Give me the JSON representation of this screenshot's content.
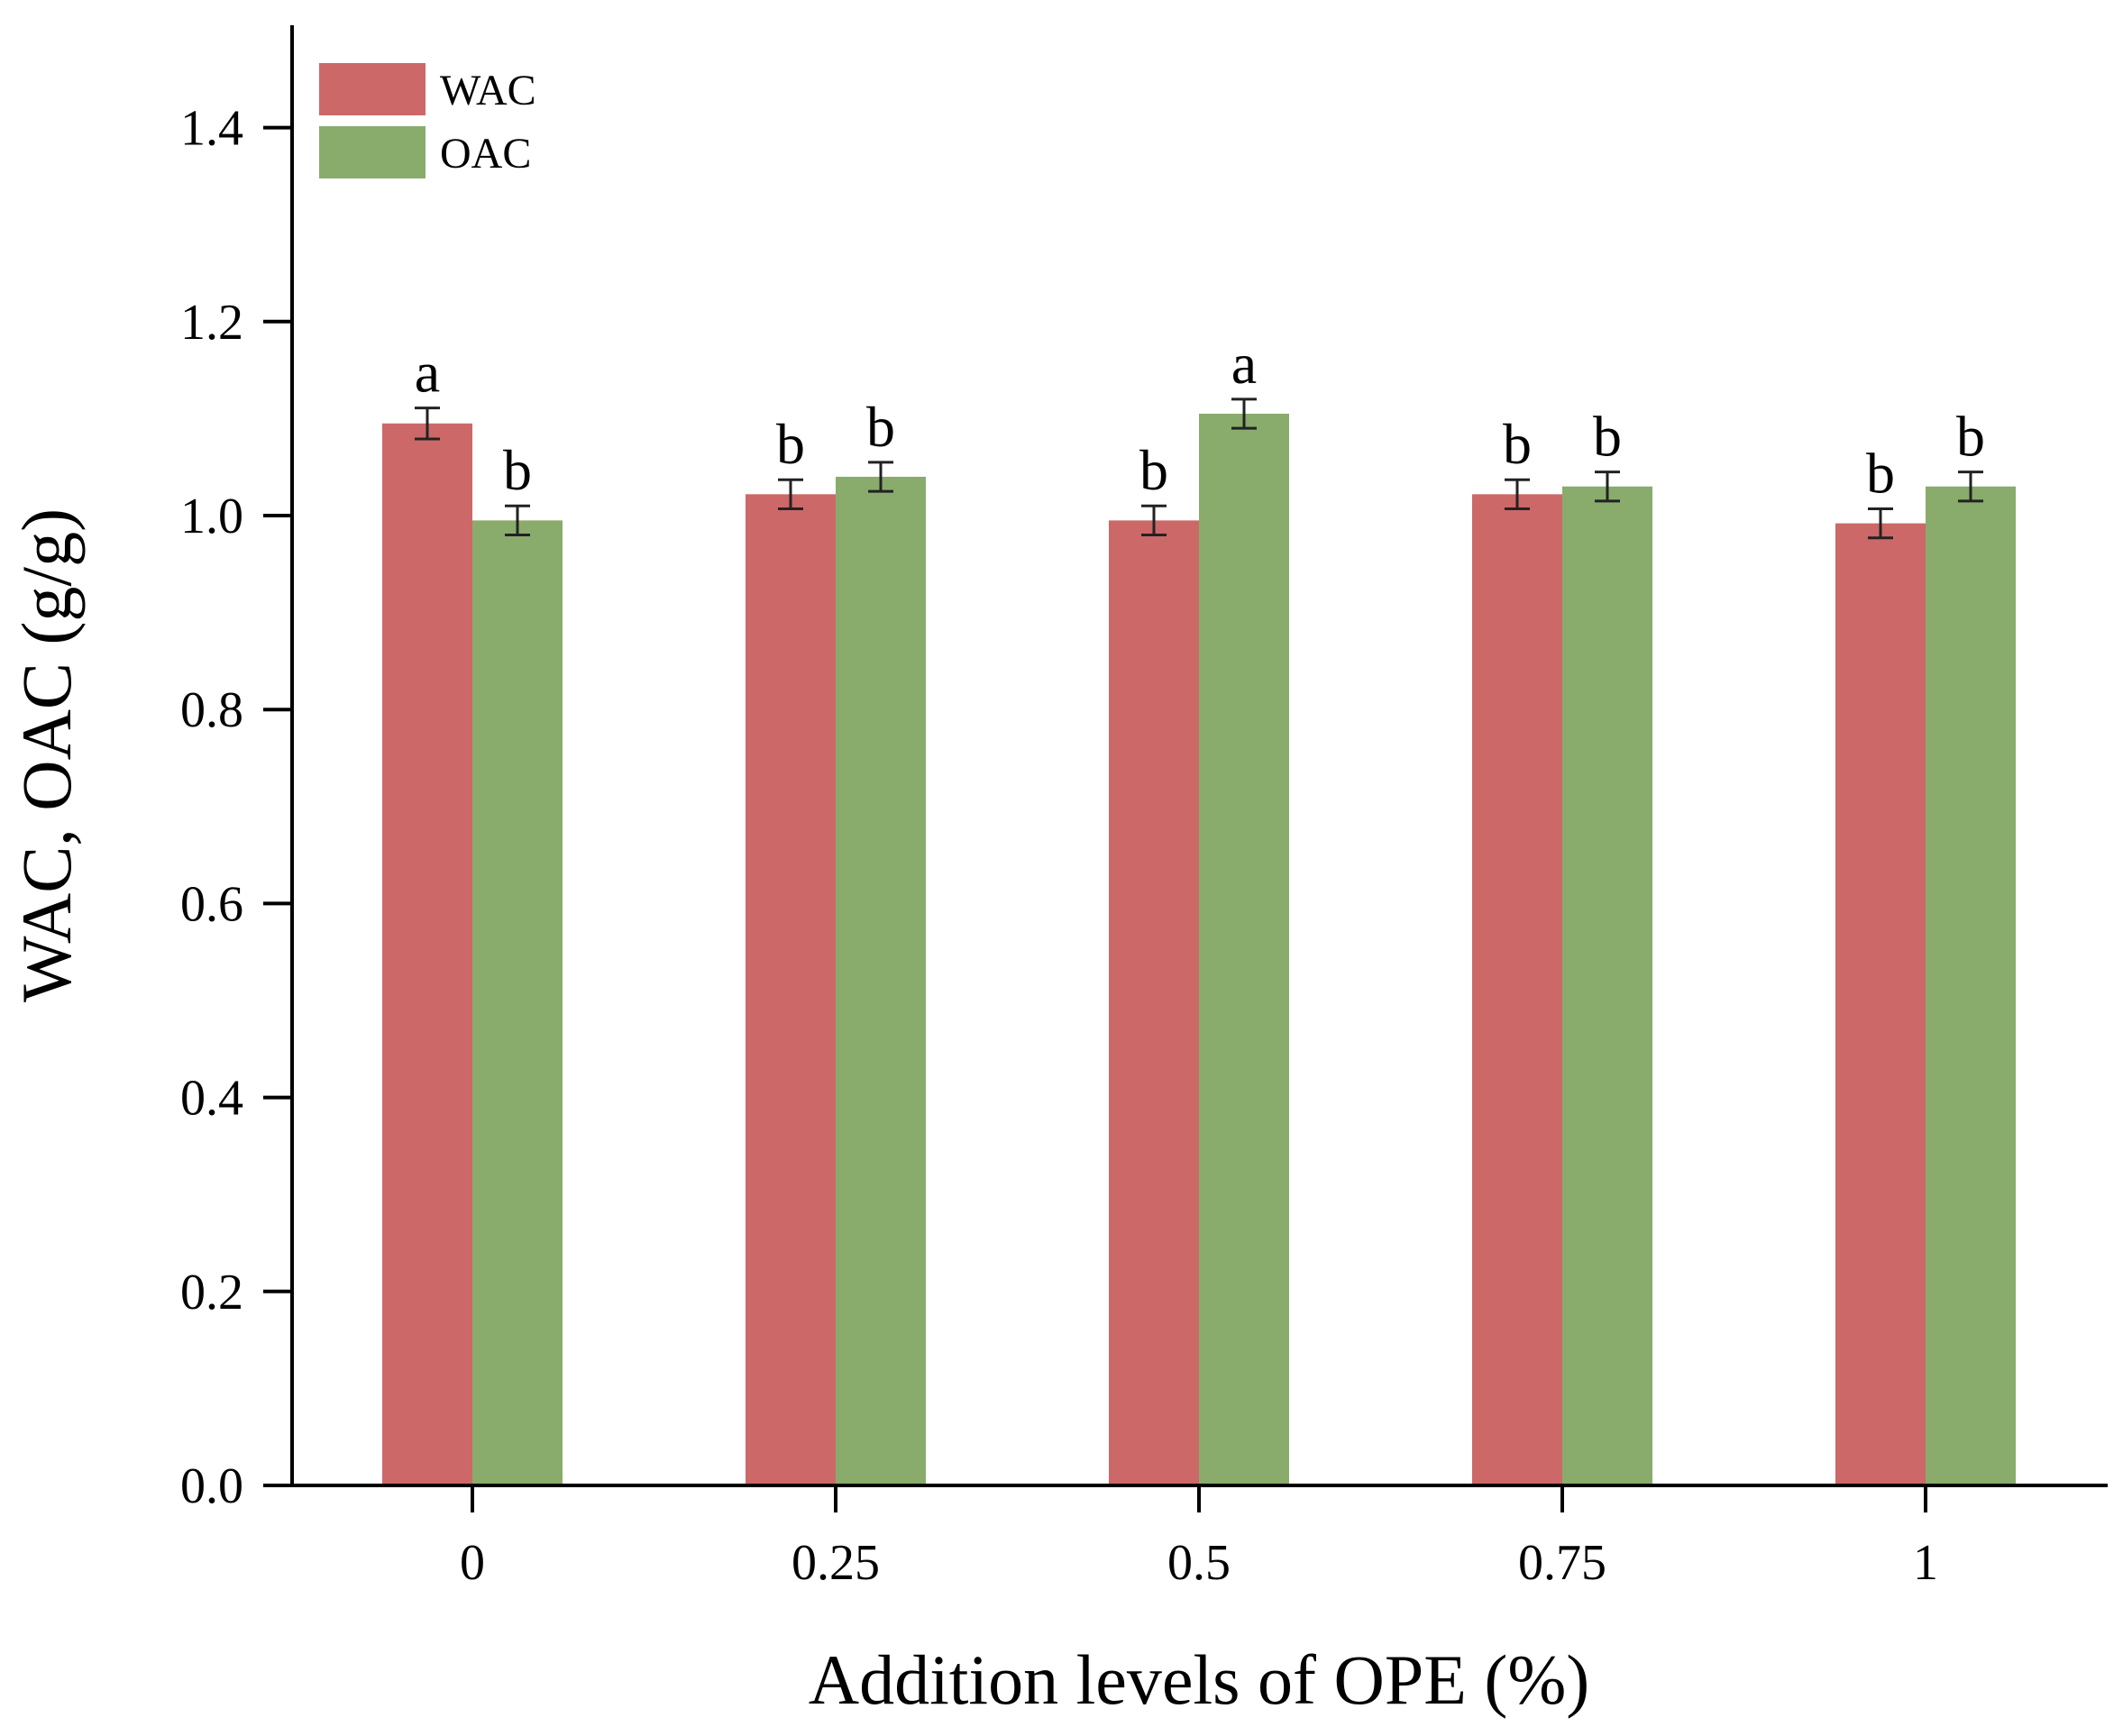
{
  "chart_data": {
    "type": "bar",
    "title": "",
    "xlabel": "Addition levels of OPE (%)",
    "ylabel": "WAC, OAC (g/g)",
    "categories": [
      "0",
      "0.25",
      "0.5",
      "0.75",
      "1"
    ],
    "ylim": [
      0,
      1.5
    ],
    "yticks": [
      "0.0",
      "0.2",
      "0.4",
      "0.6",
      "0.8",
      "1.0",
      "1.2",
      "1.4"
    ],
    "legend_position": "top-left",
    "grid": false,
    "series": [
      {
        "name": "WAC",
        "color": "#cd6868",
        "values": [
          1.095,
          1.022,
          0.995,
          1.022,
          0.992
        ],
        "errors": [
          0.016,
          0.015,
          0.015,
          0.015,
          0.015
        ],
        "significance": [
          "a",
          "b",
          "b",
          "b",
          "b"
        ]
      },
      {
        "name": "OAC",
        "color": "#89ab6b",
        "values": [
          0.995,
          1.04,
          1.105,
          1.03,
          1.03
        ],
        "errors": [
          0.015,
          0.015,
          0.015,
          0.015,
          0.015
        ],
        "significance": [
          "b",
          "b",
          "a",
          "b",
          "b"
        ]
      }
    ]
  }
}
